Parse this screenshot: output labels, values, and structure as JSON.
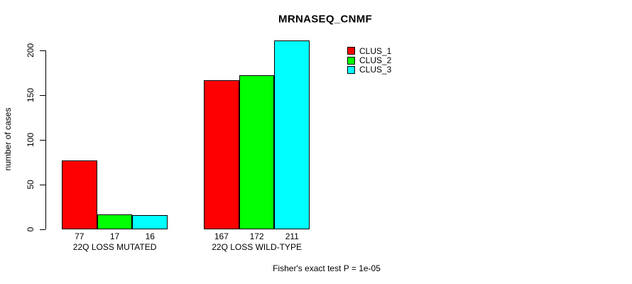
{
  "chart_data": {
    "type": "bar",
    "title": "MRNASEQ_CNMF",
    "ylabel": "number of cases",
    "xlabel": "",
    "categories": [
      "22Q LOSS MUTATED",
      "22Q LOSS WILD-TYPE"
    ],
    "series": [
      {
        "name": "CLUS_1",
        "color": "#ff0000",
        "values": [
          77,
          167
        ]
      },
      {
        "name": "CLUS_2",
        "color": "#00ff00",
        "values": [
          17,
          172
        ]
      },
      {
        "name": "CLUS_3",
        "color": "#00ffff",
        "values": [
          16,
          211
        ]
      }
    ],
    "yticks": [
      0,
      50,
      100,
      150,
      200
    ],
    "ylim": [
      0,
      211
    ],
    "bar_value_labels": true,
    "grid": false,
    "legend_position": "top-right",
    "annotations": [
      "Fisher's exact test P = 1e-05"
    ]
  }
}
